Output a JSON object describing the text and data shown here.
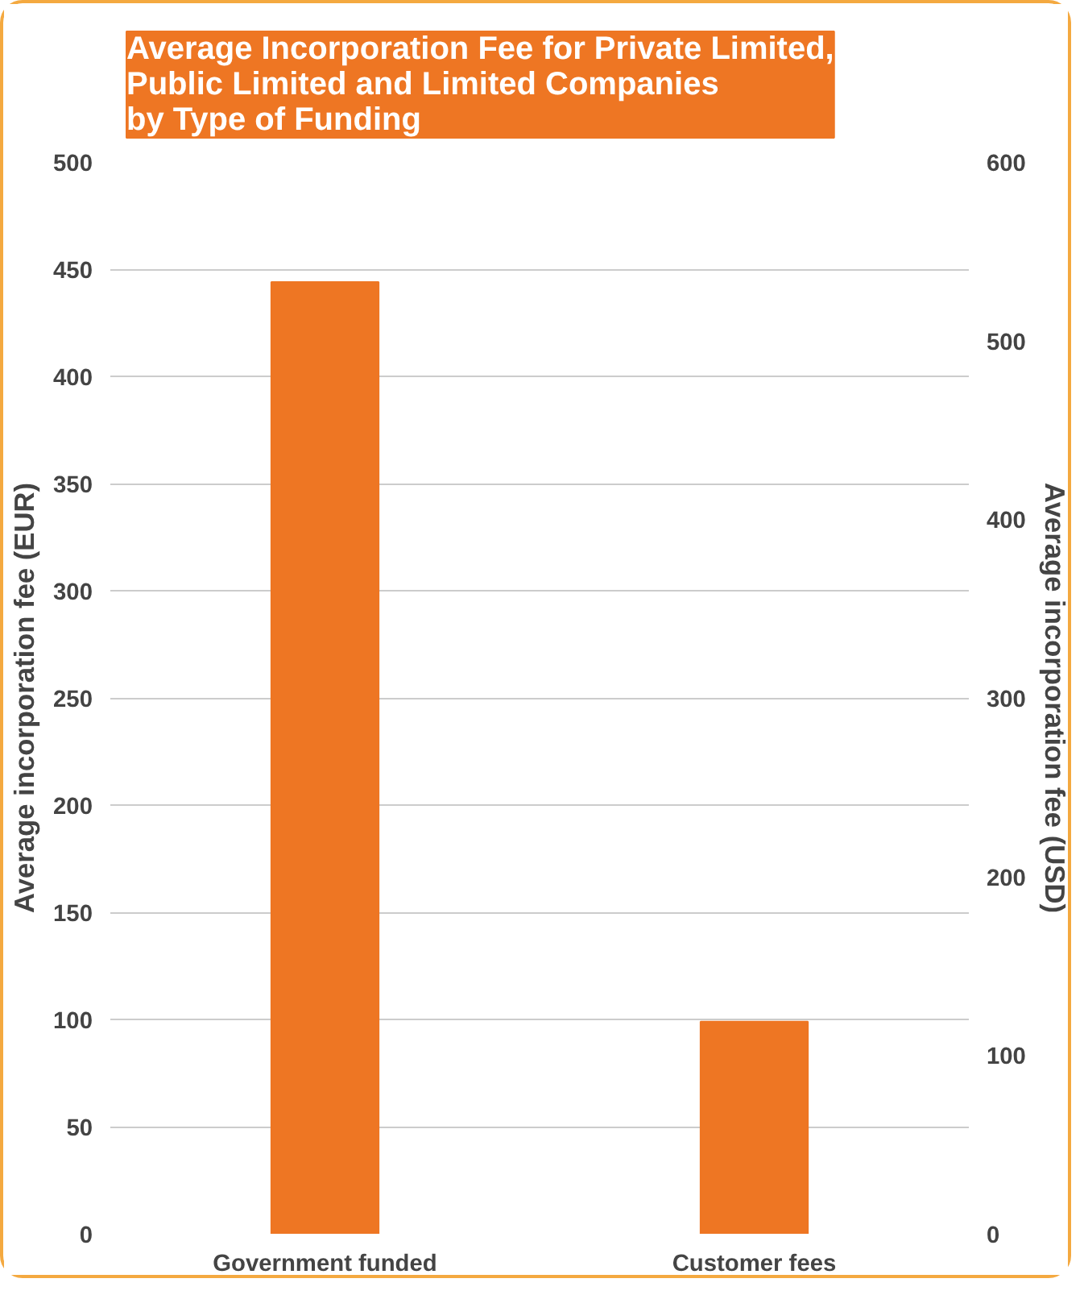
{
  "chart_data": {
    "type": "bar",
    "title": "Average Incorporation Fee for Private Limited,\nPublic Limited and Limited Companies\nby Type of Funding",
    "ylabel": "Average incorporation fee (EUR)",
    "y2label": "Average incorporation fee (USD)",
    "categories": [
      "Government funded",
      "Customer fees"
    ],
    "series": [
      {
        "color": "#ee7623",
        "values": [
          444,
          99
        ]
      }
    ],
    "ylim": [
      0,
      500
    ],
    "yticks": [
      0,
      50,
      100,
      150,
      200,
      250,
      300,
      350,
      400,
      450,
      500
    ],
    "y2lim": [
      0,
      600
    ],
    "y2ticks": [
      0,
      100,
      200,
      300,
      400,
      500,
      600
    ],
    "grid": "y"
  }
}
